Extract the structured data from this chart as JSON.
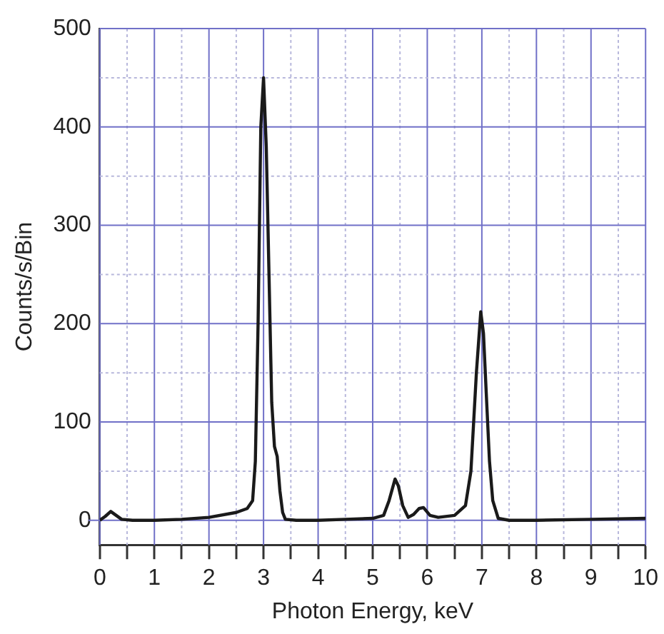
{
  "chart_data": {
    "type": "line",
    "xlabel": "Photon Energy, keV",
    "ylabel": "Counts/s/Bin",
    "xlim": [
      0,
      10
    ],
    "ylim": [
      -25,
      500
    ],
    "xticks": [
      0,
      {
        "value": 0.5,
        "label": null
      },
      1,
      {
        "value": 1.5,
        "label": null
      },
      2,
      {
        "value": 2.5,
        "label": null
      },
      3,
      {
        "value": 3.5,
        "label": null
      },
      4,
      {
        "value": 4.5,
        "label": null
      },
      5,
      {
        "value": 5.5,
        "label": null
      },
      6,
      {
        "value": 6.5,
        "label": null
      },
      7,
      {
        "value": 7.5,
        "label": null
      },
      8,
      {
        "value": 8.5,
        "label": null
      },
      9,
      {
        "value": 9.5,
        "label": null
      },
      10
    ],
    "yticks": [
      0,
      {
        "value": 50,
        "label": null
      },
      100,
      {
        "value": 150,
        "label": null
      },
      200,
      {
        "value": 250,
        "label": null
      },
      300,
      {
        "value": 350,
        "label": null
      },
      400,
      {
        "value": 450,
        "label": null
      },
      500
    ],
    "grid": true,
    "marker": "none",
    "line_style": "solid",
    "legend": false,
    "series": [
      {
        "color": "#1a1a1a",
        "x": [
          0,
          0.1,
          0.2,
          0.3,
          0.4,
          0.6,
          1.0,
          1.5,
          2.0,
          2.5,
          2.7,
          2.8,
          2.85,
          2.9,
          2.95,
          3.0,
          3.05,
          3.1,
          3.15,
          3.2,
          3.25,
          3.3,
          3.35,
          3.4,
          3.6,
          4.0,
          4.5,
          5.0,
          5.2,
          5.3,
          5.41,
          5.47,
          5.55,
          5.65,
          5.75,
          5.85,
          5.93,
          6.05,
          6.2,
          6.5,
          6.7,
          6.8,
          6.9,
          6.98,
          7.03,
          7.08,
          7.14,
          7.2,
          7.3,
          7.5,
          8,
          9,
          10
        ],
        "values": [
          0,
          4,
          9,
          5,
          1,
          0,
          0,
          1,
          3,
          8,
          12,
          20,
          60,
          200,
          400,
          450,
          380,
          250,
          120,
          75,
          65,
          30,
          8,
          1,
          0,
          0,
          1,
          2,
          5,
          20,
          42,
          35,
          15,
          3,
          6,
          12,
          13,
          5,
          3,
          5,
          15,
          50,
          150,
          212,
          190,
          130,
          60,
          20,
          2,
          0,
          0,
          1,
          2
        ]
      }
    ]
  }
}
